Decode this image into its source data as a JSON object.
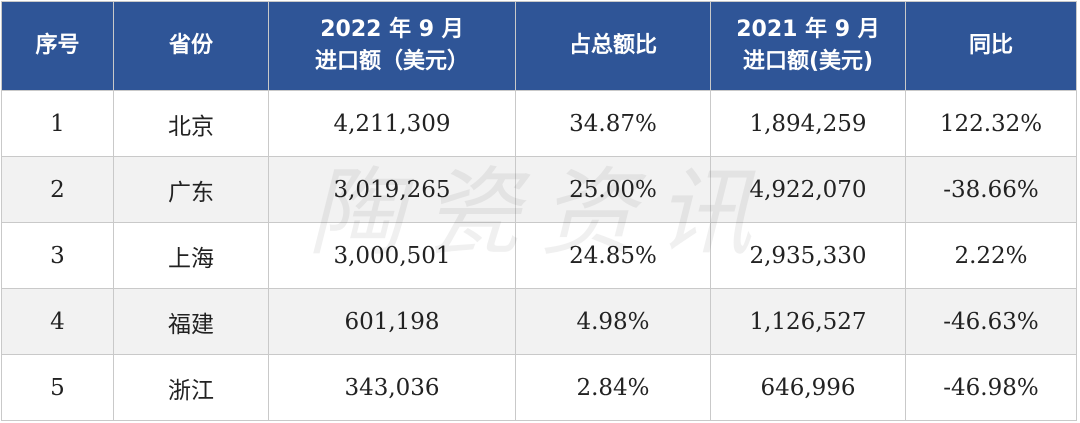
{
  "table": {
    "header": [
      [
        "序号"
      ],
      [
        "省份"
      ],
      [
        "2022 年 9 月",
        "进口额（美元）"
      ],
      [
        "占总额比"
      ],
      [
        "2021 年 9 月",
        "进口额(美元)"
      ],
      [
        "同比"
      ]
    ],
    "rows": [
      [
        "1",
        "北京",
        "4,211,309",
        "34.87%",
        "1,894,259",
        "122.32%"
      ],
      [
        "2",
        "广东",
        "3,019,265",
        "25.00%",
        "4,922,070",
        "-38.66%"
      ],
      [
        "3",
        "上海",
        "3,000,501",
        "24.85%",
        "2,935,330",
        "2.22%"
      ],
      [
        "4",
        "福建",
        "601,198",
        "4.98%",
        "1,126,527",
        "-46.63%"
      ],
      [
        "5",
        "浙江",
        "343,036",
        "2.84%",
        "646,996",
        "-46.98%"
      ]
    ]
  },
  "watermark": "陶瓷资讯"
}
